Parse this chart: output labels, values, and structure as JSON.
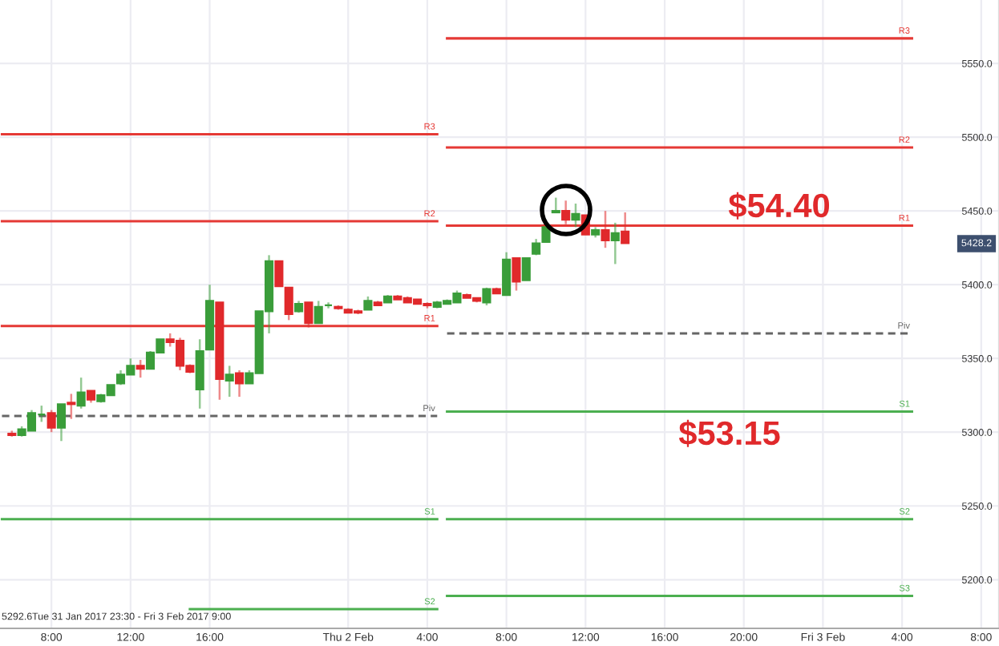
{
  "chart_data": {
    "type": "candlestick",
    "categories": [
      null,
      null,
      null,
      null,
      null,
      "8:00",
      null,
      null,
      null,
      null,
      null,
      null,
      null,
      "12:00",
      null,
      null,
      null,
      null,
      null,
      null,
      null,
      "16:00",
      null,
      null,
      null,
      null,
      null,
      null,
      null,
      null,
      null,
      null,
      null,
      null,
      null,
      "Thu 2 Feb",
      null,
      null,
      null,
      null,
      null,
      null,
      null,
      "4:00",
      null,
      null,
      null,
      null,
      null,
      null,
      null,
      "8:00",
      null,
      null,
      null,
      null,
      null,
      null,
      null,
      "12:00",
      null,
      null,
      null,
      null,
      null,
      null,
      null,
      "16:00",
      null,
      null,
      null,
      null,
      null,
      null,
      null,
      "20:00",
      null,
      null,
      null,
      null,
      null,
      null,
      null,
      "Fri 3 Feb",
      null,
      null,
      null,
      null,
      null,
      null,
      null,
      "4:00",
      null,
      null,
      null,
      null,
      null,
      null,
      null,
      "8:00",
      null
    ],
    "ohlc": [
      null,
      [
        5299,
        5301,
        5297,
        5298
      ],
      [
        5298,
        5304,
        5297,
        5302
      ],
      [
        5301,
        5315,
        5301,
        5313
      ],
      [
        5312,
        5318,
        5307,
        5312
      ],
      [
        5313,
        5315,
        5300,
        5303
      ],
      [
        5303,
        5319,
        5294,
        5319
      ],
      [
        5320,
        5326,
        5309,
        5319
      ],
      [
        5318,
        5337,
        5316,
        5327
      ],
      [
        5328,
        5328,
        5320,
        5322
      ],
      [
        5321,
        5326,
        5320,
        5325
      ],
      [
        5325,
        5332,
        5325,
        5332
      ],
      [
        5333,
        5342,
        5332,
        5339
      ],
      [
        5339,
        5350,
        5339,
        5345
      ],
      [
        5345,
        5349,
        5337,
        5343
      ],
      [
        5343,
        5355,
        5343,
        5354
      ],
      [
        5354,
        5363,
        5354,
        5363
      ],
      [
        5363,
        5367,
        5358,
        5361
      ],
      [
        5362,
        5364,
        5342,
        5345
      ],
      [
        5345,
        5346,
        5340,
        5341
      ],
      [
        5329,
        5363,
        5316,
        5355
      ],
      [
        5356,
        5400,
        5356,
        5389
      ],
      [
        5388,
        5388,
        5322,
        5336
      ],
      [
        5335,
        5345,
        5324,
        5339
      ],
      [
        5340,
        5342,
        5324,
        5333
      ],
      [
        5333,
        5342,
        5333,
        5340
      ],
      [
        5340,
        5382,
        5340,
        5382
      ],
      [
        5382,
        5420,
        5367,
        5416
      ],
      [
        5416,
        5416,
        5399,
        5399
      ],
      [
        5398,
        5398,
        5376,
        5380
      ],
      [
        5382,
        5389,
        5381,
        5387
      ],
      [
        5388,
        5388,
        5371,
        5374
      ],
      [
        5374,
        5389,
        5374,
        5385
      ],
      [
        5386,
        5388,
        5384,
        5386
      ],
      [
        5385,
        5386,
        5383,
        5384
      ],
      [
        5383,
        5384,
        5381,
        5381
      ],
      [
        5382,
        5383,
        5380,
        5381
      ],
      [
        5383,
        5392,
        5383,
        5389
      ],
      [
        5388,
        5389,
        5386,
        5386
      ],
      [
        5388,
        5393,
        5388,
        5392
      ],
      [
        5392,
        5393,
        5390,
        5390
      ],
      [
        5391,
        5392,
        5388,
        5388
      ],
      [
        5390,
        5390,
        5387,
        5387
      ],
      [
        5387,
        5388,
        5384,
        5386
      ],
      [
        5385,
        5389,
        5384,
        5388
      ],
      [
        5387,
        5390,
        5387,
        5389
      ],
      [
        5388,
        5396,
        5388,
        5394
      ],
      [
        5393,
        5394,
        5391,
        5391
      ],
      [
        5391,
        5391,
        5388,
        5389
      ],
      [
        5388,
        5398,
        5386,
        5397
      ],
      [
        5397,
        5398,
        5394,
        5394
      ],
      [
        5393,
        5422,
        5393,
        5417
      ],
      [
        5418,
        5418,
        5396,
        5402
      ],
      [
        5403,
        5418,
        5403,
        5418
      ],
      [
        5421,
        5431,
        5420,
        5428
      ],
      [
        5429,
        5439,
        5429,
        5439
      ],
      [
        5449,
        5459,
        5449,
        5450
      ],
      [
        5450,
        5457,
        5441,
        5444
      ],
      [
        5444,
        5455,
        5439,
        5448
      ],
      [
        5447,
        5447,
        5434,
        5434
      ],
      [
        5434,
        5439,
        5432,
        5437
      ],
      [
        5437,
        5450,
        5425,
        5430
      ],
      [
        5430,
        5442,
        5414,
        5435
      ],
      [
        5436,
        5449,
        5428,
        5428.2
      ],
      null,
      null,
      null,
      null,
      null,
      null,
      null,
      null,
      null,
      null,
      null,
      null,
      null,
      null,
      null,
      null,
      null,
      null,
      null,
      null,
      null,
      null,
      null,
      null,
      null,
      null,
      null,
      null,
      null,
      null,
      null,
      null,
      null,
      null,
      null,
      null,
      null
    ],
    "colors": [
      null,
      "#e0292b",
      "#3a9d3a",
      "#3a9d3a",
      "#3a9d3a",
      "#e0292b",
      "#3a9d3a",
      "#e0292b",
      "#3a9d3a",
      "#e0292b",
      "#3a9d3a",
      "#3a9d3a",
      "#3a9d3a",
      "#3a9d3a",
      "#e0292b",
      "#3a9d3a",
      "#3a9d3a",
      "#e0292b",
      "#e0292b",
      "#e0292b",
      "#3a9d3a",
      "#3a9d3a",
      "#e0292b",
      "#3a9d3a",
      "#e0292b",
      "#3a9d3a",
      "#3a9d3a",
      "#3a9d3a",
      "#e0292b",
      "#e0292b",
      "#3a9d3a",
      "#e0292b",
      "#3a9d3a",
      "#3a9d3a",
      "#e0292b",
      "#e0292b",
      "#e0292b",
      "#3a9d3a",
      "#e0292b",
      "#3a9d3a",
      "#e0292b",
      "#e0292b",
      "#e0292b",
      "#e0292b",
      "#3a9d3a",
      "#3a9d3a",
      "#3a9d3a",
      "#e0292b",
      "#e0292b",
      "#3a9d3a",
      "#e0292b",
      "#3a9d3a",
      "#e0292b",
      "#3a9d3a",
      "#3a9d3a",
      "#3a9d3a",
      "#3a9d3a",
      "#e0292b",
      "#3a9d3a",
      "#e0292b",
      "#3a9d3a",
      "#e0292b",
      "#3a9d3a",
      "#e0292b",
      null,
      null,
      null,
      null,
      null,
      null,
      null,
      null,
      null,
      null,
      null,
      null,
      null,
      null,
      null,
      null,
      null,
      null,
      null,
      null,
      null,
      null,
      null,
      null,
      null,
      null,
      null,
      null,
      null,
      null,
      null,
      null,
      null,
      null,
      null,
      null,
      null
    ],
    "series": [
      {
        "name": "R3",
        "type": "line",
        "color": "#e53935",
        "values": [
          5502,
          5502,
          5502,
          5502,
          5502,
          5502,
          5502,
          5502,
          5502,
          5502,
          5502,
          5502,
          5502,
          5502,
          5502,
          5502,
          5502,
          5502,
          5502,
          5502,
          5502,
          5502,
          5502,
          5502,
          5502,
          5502,
          5502,
          5502,
          5502,
          5502,
          5502,
          5502,
          5502,
          5502,
          5502,
          5502,
          5502,
          5502,
          5502,
          5502,
          5502,
          5502,
          5502,
          5502,
          5502,
          null,
          null,
          null,
          null,
          null,
          null,
          null,
          null,
          null,
          null,
          null,
          null,
          null,
          null,
          null,
          null,
          null,
          null,
          null,
          null,
          null,
          null,
          null,
          null,
          null,
          null,
          null,
          null,
          null,
          null,
          null,
          null,
          null,
          null,
          null,
          null,
          null,
          null,
          null,
          null,
          null,
          null,
          null,
          null,
          null,
          null,
          null,
          null,
          null,
          null,
          null,
          null,
          null,
          null,
          null,
          null
        ]
      },
      {
        "name": "R2",
        "type": "line",
        "color": "#e53935",
        "values": [
          5443,
          5443,
          5443,
          5443,
          5443,
          5443,
          5443,
          5443,
          5443,
          5443,
          5443,
          5443,
          5443,
          5443,
          5443,
          5443,
          5443,
          5443,
          5443,
          5443,
          5443,
          5443,
          5443,
          5443,
          5443,
          5443,
          5443,
          5443,
          5443,
          5443,
          5443,
          5443,
          5443,
          5443,
          5443,
          5443,
          5443,
          5443,
          5443,
          5443,
          5443,
          5443,
          5443,
          5443,
          5443,
          null,
          null,
          null,
          null,
          null,
          null,
          null,
          null,
          null,
          null,
          null,
          null,
          null,
          null,
          null,
          null,
          null,
          null,
          null,
          null,
          null,
          null,
          null,
          null,
          null,
          null,
          null,
          null,
          null,
          null,
          null,
          null,
          null,
          null,
          null,
          null,
          null,
          null,
          null,
          null,
          null,
          null,
          null,
          null,
          null,
          null,
          null,
          null,
          null,
          null,
          null,
          null,
          null,
          null,
          null,
          null
        ]
      },
      {
        "name": "R1",
        "type": "line",
        "color": "#e53935",
        "values": [
          5372,
          5372,
          5372,
          5372,
          5372,
          5372,
          5372,
          5372,
          5372,
          5372,
          5372,
          5372,
          5372,
          5372,
          5372,
          5372,
          5372,
          5372,
          5372,
          5372,
          5372,
          5372,
          5372,
          5372,
          5372,
          5372,
          5372,
          5372,
          5372,
          5372,
          5372,
          5372,
          5372,
          5372,
          5372,
          5372,
          5372,
          5372,
          5372,
          5372,
          5372,
          5372,
          5372,
          5372,
          5372,
          null,
          null,
          null,
          null,
          null,
          null,
          null,
          null,
          null,
          null,
          null,
          null,
          null,
          null,
          null,
          null,
          null,
          null,
          null,
          null,
          null,
          null,
          null,
          null,
          null,
          null,
          null,
          null,
          null,
          null,
          null,
          null,
          null,
          null,
          null,
          null,
          null,
          null,
          null,
          null,
          null,
          null,
          null,
          null,
          null,
          null,
          null,
          null,
          null,
          null,
          null,
          null,
          null,
          null,
          null,
          null
        ]
      },
      {
        "name": "Piv",
        "type": "line",
        "color": "#666666",
        "line_style": "dashed",
        "values": [
          5311,
          5311,
          5311,
          5311,
          5311,
          5311,
          5311,
          5311,
          5311,
          5311,
          5311,
          5311,
          5311,
          5311,
          5311,
          5311,
          5311,
          5311,
          5311,
          5311,
          5311,
          5311,
          5311,
          5311,
          5311,
          5311,
          5311,
          5311,
          5311,
          5311,
          5311,
          5311,
          5311,
          5311,
          5311,
          5311,
          5311,
          5311,
          5311,
          5311,
          5311,
          5311,
          5311,
          5311,
          5311,
          null,
          null,
          null,
          null,
          null,
          null,
          null,
          null,
          null,
          null,
          null,
          null,
          null,
          null,
          null,
          null,
          null,
          null,
          null,
          null,
          null,
          null,
          null,
          null,
          null,
          null,
          null,
          null,
          null,
          null,
          null,
          null,
          null,
          null,
          null,
          null,
          null,
          null,
          null,
          null,
          null,
          null,
          null,
          null,
          null,
          null,
          null,
          null,
          null,
          null,
          null,
          null,
          null,
          null,
          null,
          null
        ]
      },
      {
        "name": "S1",
        "type": "line",
        "color": "#4caf50",
        "values": [
          5241,
          5241,
          5241,
          5241,
          5241,
          5241,
          5241,
          5241,
          5241,
          5241,
          5241,
          5241,
          5241,
          5241,
          5241,
          5241,
          5241,
          5241,
          5241,
          5241,
          5241,
          5241,
          5241,
          5241,
          5241,
          5241,
          5241,
          5241,
          5241,
          5241,
          5241,
          5241,
          5241,
          5241,
          5241,
          5241,
          5241,
          5241,
          5241,
          5241,
          5241,
          5241,
          5241,
          5241,
          5241,
          null,
          null,
          null,
          null,
          null,
          null,
          null,
          null,
          null,
          null,
          null,
          null,
          null,
          null,
          null,
          null,
          null,
          null,
          null,
          null,
          null,
          null,
          null,
          null,
          null,
          null,
          null,
          null,
          null,
          null,
          null,
          null,
          null,
          null,
          null,
          null,
          null,
          null,
          null,
          null,
          null,
          null,
          null,
          null,
          null,
          null,
          null,
          null,
          null,
          null,
          null,
          null,
          null,
          null,
          null,
          null
        ]
      },
      {
        "name": "S2",
        "type": "line",
        "color": "#4caf50",
        "values": [
          null,
          null,
          null,
          null,
          null,
          null,
          null,
          null,
          null,
          null,
          null,
          null,
          null,
          null,
          null,
          null,
          null,
          null,
          null,
          5180,
          5180,
          5180,
          5180,
          5180,
          5180,
          5180,
          5180,
          5180,
          5180,
          5180,
          5180,
          5180,
          5180,
          5180,
          5180,
          5180,
          5180,
          5180,
          5180,
          5180,
          5180,
          5180,
          5180,
          5180,
          5180,
          null,
          null,
          null,
          null,
          null,
          null,
          null,
          null,
          null,
          null,
          null,
          null,
          null,
          null,
          null,
          null,
          null,
          null,
          null,
          null,
          null,
          null,
          null,
          null,
          null,
          null,
          null,
          null,
          null,
          null,
          null,
          null,
          null,
          null,
          null,
          null,
          null,
          null,
          null,
          null,
          null,
          null,
          null,
          null,
          null,
          null,
          null,
          null,
          null,
          null,
          null,
          null,
          null,
          null,
          null,
          null
        ]
      },
      {
        "name": "R3",
        "type": "line",
        "color": "#e53935",
        "values": [
          null,
          null,
          null,
          null,
          null,
          null,
          null,
          null,
          null,
          null,
          null,
          null,
          null,
          null,
          null,
          null,
          null,
          null,
          null,
          null,
          null,
          null,
          null,
          null,
          null,
          null,
          null,
          null,
          null,
          null,
          null,
          null,
          null,
          null,
          null,
          null,
          null,
          null,
          null,
          null,
          null,
          null,
          null,
          null,
          null,
          5567,
          5567,
          5567,
          5567,
          5567,
          5567,
          5567,
          5567,
          5567,
          5567,
          5567,
          5567,
          5567,
          5567,
          5567,
          5567,
          5567,
          5567,
          5567,
          5567,
          5567,
          5567,
          5567,
          5567,
          5567,
          5567,
          5567,
          5567,
          5567,
          5567,
          5567,
          5567,
          5567,
          5567,
          5567,
          5567,
          5567,
          5567,
          5567,
          5567,
          5567,
          5567,
          5567,
          5567,
          5567,
          5567,
          5567,
          5567,
          null,
          null,
          null,
          null,
          null,
          null,
          null,
          null
        ]
      },
      {
        "name": "R2",
        "type": "line",
        "color": "#e53935",
        "values": [
          null,
          null,
          null,
          null,
          null,
          null,
          null,
          null,
          null,
          null,
          null,
          null,
          null,
          null,
          null,
          null,
          null,
          null,
          null,
          null,
          null,
          null,
          null,
          null,
          null,
          null,
          null,
          null,
          null,
          null,
          null,
          null,
          null,
          null,
          null,
          null,
          null,
          null,
          null,
          null,
          null,
          null,
          null,
          null,
          null,
          5493,
          5493,
          5493,
          5493,
          5493,
          5493,
          5493,
          5493,
          5493,
          5493,
          5493,
          5493,
          5493,
          5493,
          5493,
          5493,
          5493,
          5493,
          5493,
          5493,
          5493,
          5493,
          5493,
          5493,
          5493,
          5493,
          5493,
          5493,
          5493,
          5493,
          5493,
          5493,
          5493,
          5493,
          5493,
          5493,
          5493,
          5493,
          5493,
          5493,
          5493,
          5493,
          5493,
          5493,
          5493,
          5493,
          5493,
          5493,
          null,
          null,
          null,
          null,
          null,
          null,
          null,
          null
        ]
      },
      {
        "name": "R1",
        "type": "line",
        "color": "#e53935",
        "values": [
          null,
          null,
          null,
          null,
          null,
          null,
          null,
          null,
          null,
          null,
          null,
          null,
          null,
          null,
          null,
          null,
          null,
          null,
          null,
          null,
          null,
          null,
          null,
          null,
          null,
          null,
          null,
          null,
          null,
          null,
          null,
          null,
          null,
          null,
          null,
          null,
          null,
          null,
          null,
          null,
          null,
          null,
          null,
          null,
          null,
          5440,
          5440,
          5440,
          5440,
          5440,
          5440,
          5440,
          5440,
          5440,
          5440,
          5440,
          5440,
          5440,
          5440,
          5440,
          5440,
          5440,
          5440,
          5440,
          5440,
          5440,
          5440,
          5440,
          5440,
          5440,
          5440,
          5440,
          5440,
          5440,
          5440,
          5440,
          5440,
          5440,
          5440,
          5440,
          5440,
          5440,
          5440,
          5440,
          5440,
          5440,
          5440,
          5440,
          5440,
          5440,
          5440,
          5440,
          5440,
          null,
          null,
          null,
          null,
          null,
          null,
          null,
          null
        ]
      },
      {
        "name": "Piv",
        "type": "line",
        "color": "#666666",
        "line_style": "dashed",
        "values": [
          null,
          null,
          null,
          null,
          null,
          null,
          null,
          null,
          null,
          null,
          null,
          null,
          null,
          null,
          null,
          null,
          null,
          null,
          null,
          null,
          null,
          null,
          null,
          null,
          null,
          null,
          null,
          null,
          null,
          null,
          null,
          null,
          null,
          null,
          null,
          null,
          null,
          null,
          null,
          null,
          null,
          null,
          null,
          null,
          null,
          5367,
          5367,
          5367,
          5367,
          5367,
          5367,
          5367,
          5367,
          5367,
          5367,
          5367,
          5367,
          5367,
          5367,
          5367,
          5367,
          5367,
          5367,
          5367,
          5367,
          5367,
          5367,
          5367,
          5367,
          5367,
          5367,
          5367,
          5367,
          5367,
          5367,
          5367,
          5367,
          5367,
          5367,
          5367,
          5367,
          5367,
          5367,
          5367,
          5367,
          5367,
          5367,
          5367,
          5367,
          5367,
          5367,
          5367,
          5367,
          null,
          null,
          null,
          null,
          null,
          null,
          null,
          null
        ]
      },
      {
        "name": "S1",
        "type": "line",
        "color": "#4caf50",
        "values": [
          null,
          null,
          null,
          null,
          null,
          null,
          null,
          null,
          null,
          null,
          null,
          null,
          null,
          null,
          null,
          null,
          null,
          null,
          null,
          null,
          null,
          null,
          null,
          null,
          null,
          null,
          null,
          null,
          null,
          null,
          null,
          null,
          null,
          null,
          null,
          null,
          null,
          null,
          null,
          null,
          null,
          null,
          null,
          null,
          null,
          5314,
          5314,
          5314,
          5314,
          5314,
          5314,
          5314,
          5314,
          5314,
          5314,
          5314,
          5314,
          5314,
          5314,
          5314,
          5314,
          5314,
          5314,
          5314,
          5314,
          5314,
          5314,
          5314,
          5314,
          5314,
          5314,
          5314,
          5314,
          5314,
          5314,
          5314,
          5314,
          5314,
          5314,
          5314,
          5314,
          5314,
          5314,
          5314,
          5314,
          5314,
          5314,
          5314,
          5314,
          5314,
          5314,
          5314,
          5314,
          null,
          null,
          null,
          null,
          null,
          null,
          null,
          null
        ]
      },
      {
        "name": "S2",
        "type": "line",
        "color": "#4caf50",
        "values": [
          null,
          null,
          null,
          null,
          null,
          null,
          null,
          null,
          null,
          null,
          null,
          null,
          null,
          null,
          null,
          null,
          null,
          null,
          null,
          null,
          null,
          null,
          null,
          null,
          null,
          null,
          null,
          null,
          null,
          null,
          null,
          null,
          null,
          null,
          null,
          null,
          null,
          null,
          null,
          null,
          null,
          null,
          null,
          null,
          null,
          5241,
          5241,
          5241,
          5241,
          5241,
          5241,
          5241,
          5241,
          5241,
          5241,
          5241,
          5241,
          5241,
          5241,
          5241,
          5241,
          5241,
          5241,
          5241,
          5241,
          5241,
          5241,
          5241,
          5241,
          5241,
          5241,
          5241,
          5241,
          5241,
          5241,
          5241,
          5241,
          5241,
          5241,
          5241,
          5241,
          5241,
          5241,
          5241,
          5241,
          5241,
          5241,
          5241,
          5241,
          5241,
          5241,
          5241,
          5241,
          null,
          null,
          null,
          null,
          null,
          null,
          null,
          null
        ]
      },
      {
        "name": "S3",
        "type": "line",
        "color": "#4caf50",
        "values": [
          null,
          null,
          null,
          null,
          null,
          null,
          null,
          null,
          null,
          null,
          null,
          null,
          null,
          null,
          null,
          null,
          null,
          null,
          null,
          null,
          null,
          null,
          null,
          null,
          null,
          null,
          null,
          null,
          null,
          null,
          null,
          null,
          null,
          null,
          null,
          null,
          null,
          null,
          null,
          null,
          null,
          null,
          null,
          null,
          null,
          5189,
          5189,
          5189,
          5189,
          5189,
          5189,
          5189,
          5189,
          5189,
          5189,
          5189,
          5189,
          5189,
          5189,
          5189,
          5189,
          5189,
          5189,
          5189,
          5189,
          5189,
          5189,
          5189,
          5189,
          5189,
          5189,
          5189,
          5189,
          5189,
          5189,
          5189,
          5189,
          5189,
          5189,
          5189,
          5189,
          5189,
          5189,
          5189,
          5189,
          5189,
          5189,
          5189,
          5189,
          5189,
          5189,
          5189,
          5189,
          null,
          null,
          null,
          null,
          null,
          null,
          null,
          null
        ]
      }
    ],
    "ylim": [
      5167,
      5593
    ],
    "yticks": [
      {
        "value": 5200,
        "label": "5200.0"
      },
      {
        "value": 5250,
        "label": "5250.0"
      },
      {
        "value": 5300,
        "label": "5300.0"
      },
      {
        "value": 5350,
        "label": "5350.0"
      },
      {
        "value": 5400,
        "label": "5400.0"
      },
      {
        "value": 5450,
        "label": "5450.0"
      },
      {
        "value": 5500,
        "label": "5500.0"
      },
      {
        "value": 5550,
        "label": "5550.0"
      }
    ],
    "grid": true,
    "annotations": [
      "$54.40",
      "$53.15",
      "5428.2",
      "5292.6",
      "Tue 31 Jan 2017 23:30 - Fri 3 Feb 2017 9:00"
    ]
  }
}
